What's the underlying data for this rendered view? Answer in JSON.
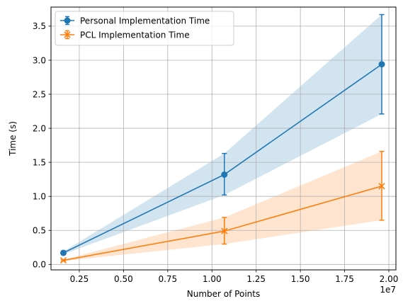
{
  "chart_data": {
    "type": "line",
    "xlabel": "Number of Points",
    "ylabel": "Time (s)",
    "x_offset_label": "1e7",
    "xlim": [
      0.09,
      2.04
    ],
    "ylim": [
      -0.08,
      3.78
    ],
    "x_ticks": [
      0.25,
      0.5,
      0.75,
      1.0,
      1.25,
      1.5,
      1.75,
      2.0
    ],
    "x_tick_labels": [
      "0.25",
      "0.50",
      "0.75",
      "1.00",
      "1.25",
      "1.50",
      "1.75",
      "2.00"
    ],
    "y_ticks": [
      0.0,
      0.5,
      1.0,
      1.5,
      2.0,
      2.5,
      3.0,
      3.5
    ],
    "y_tick_labels": [
      "0.0",
      "0.5",
      "1.0",
      "1.5",
      "2.0",
      "2.5",
      "3.0",
      "3.5"
    ],
    "grid": true,
    "legend_position": "upper-left",
    "x": [
      0.16,
      1.07,
      1.96
    ],
    "series": [
      {
        "name": "Personal Implementation Time",
        "color": "#1f77b4",
        "marker": "circle",
        "values": [
          0.17,
          1.32,
          2.94
        ],
        "err_low": [
          0.15,
          1.02,
          2.21
        ],
        "err_high": [
          0.19,
          1.63,
          3.67
        ],
        "band_low": [
          0.15,
          1.02,
          2.21
        ],
        "band_high": [
          0.19,
          1.63,
          3.67
        ]
      },
      {
        "name": "PCL Implementation Time",
        "color": "#ff7f0e",
        "marker": "x",
        "values": [
          0.06,
          0.49,
          1.15
        ],
        "err_low": [
          0.05,
          0.3,
          0.65
        ],
        "err_high": [
          0.07,
          0.69,
          1.66
        ],
        "band_low": [
          0.05,
          0.3,
          0.65
        ],
        "band_high": [
          0.07,
          0.69,
          1.66
        ]
      }
    ]
  }
}
